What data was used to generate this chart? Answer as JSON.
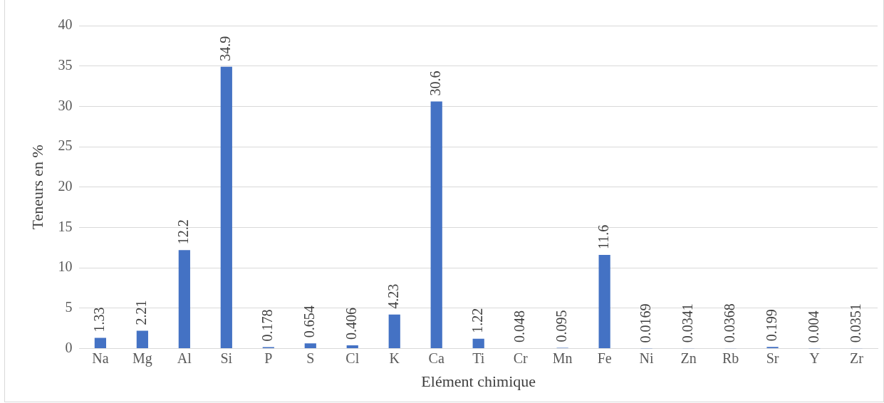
{
  "chart_data": {
    "type": "bar",
    "xlabel": "Elément chimique",
    "ylabel": "Teneurs en %",
    "categories": [
      "Na",
      "Mg",
      "Al",
      "Si",
      "P",
      "S",
      "Cl",
      "K",
      "Ca",
      "Ti",
      "Cr",
      "Mn",
      "Fe",
      "Ni",
      "Zn",
      "Rb",
      "Sr",
      "Y",
      "Zr"
    ],
    "values": [
      1.33,
      2.21,
      12.2,
      34.9,
      0.178,
      0.654,
      0.406,
      4.23,
      30.6,
      1.22,
      0.048,
      0.095,
      11.6,
      0.0169,
      0.0341,
      0.0368,
      0.199,
      0.004,
      0.0351
    ],
    "color": "#4472c4",
    "ylim": [
      0,
      40
    ],
    "yticks": [
      0,
      5,
      10,
      15,
      20,
      25,
      30,
      35,
      40
    ],
    "grid": "y",
    "legend": false,
    "data_labels": true
  }
}
